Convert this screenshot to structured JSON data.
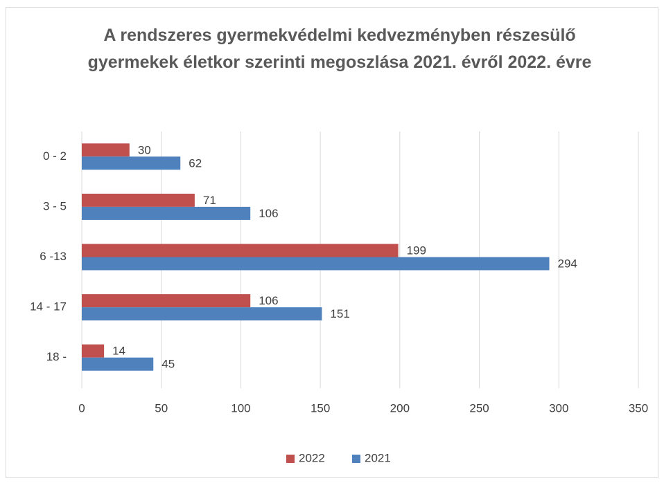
{
  "chart_data": {
    "type": "hbar",
    "title": "A rendszeres gyermekvédelmi kedvezményben részesülő gyermekek életkor szerinti megoszlása 2021. évről 2022. évre",
    "categories": [
      "0 - 2",
      "3 - 5",
      "6 -13",
      "14 - 17",
      "18 -"
    ],
    "series": [
      {
        "name": "2022",
        "color": "#c0504d",
        "values": [
          30,
          71,
          199,
          106,
          14
        ]
      },
      {
        "name": "2021",
        "color": "#4f81bd",
        "values": [
          62,
          106,
          294,
          151,
          45
        ]
      }
    ],
    "xlim": [
      0,
      350
    ],
    "xticks": [
      0,
      50,
      100,
      150,
      200,
      250,
      300,
      350
    ],
    "grid": true,
    "legend": "bottom"
  }
}
